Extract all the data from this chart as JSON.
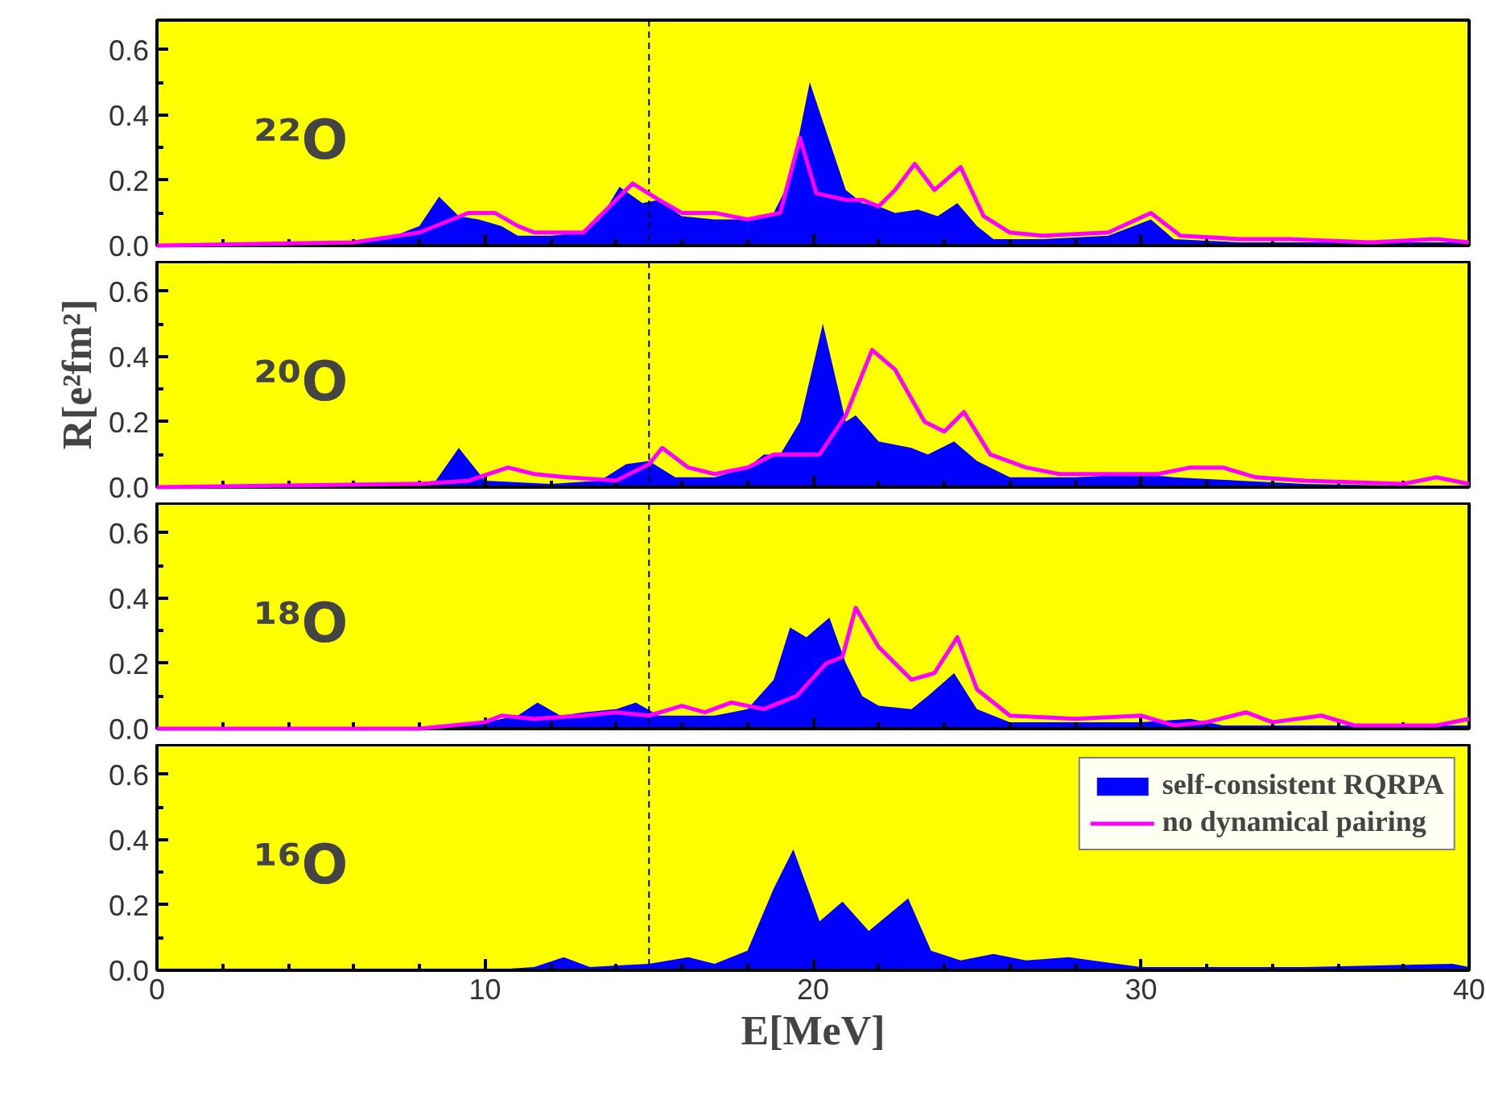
{
  "chart_data": [
    {
      "type": "area",
      "annotations": [
        "²²O"
      ],
      "xlim": [
        0,
        40
      ],
      "ylim": [
        0,
        0.69
      ],
      "xticks": [
        0,
        {
          "value": 2,
          "label": null
        },
        {
          "value": 4,
          "label": null
        },
        {
          "value": 6,
          "label": null
        },
        {
          "value": 8,
          "label": null
        },
        10,
        {
          "value": 12,
          "label": null
        },
        {
          "value": 14,
          "label": null
        },
        {
          "value": 16,
          "label": null
        },
        {
          "value": 18,
          "label": null
        },
        20,
        {
          "value": 22,
          "label": null
        },
        {
          "value": 24,
          "label": null
        },
        {
          "value": 26,
          "label": null
        },
        {
          "value": 28,
          "label": null
        },
        30,
        {
          "value": 32,
          "label": null
        },
        {
          "value": 34,
          "label": null
        },
        {
          "value": 36,
          "label": null
        },
        {
          "value": 38,
          "label": null
        },
        40
      ],
      "yticks": [
        {
          "value": 0,
          "label": "0.0"
        },
        {
          "value": 0.1,
          "label": null
        },
        0.2,
        {
          "value": 0.3,
          "label": null
        },
        0.4,
        {
          "value": 0.5,
          "label": null
        },
        0.6
      ],
      "tick_labels": "y",
      "ref_lines": [
        {
          "axis": "x",
          "value": 15,
          "line_style": "dashed",
          "color": "#000000"
        }
      ],
      "series": [
        {
          "color": "#0000ff",
          "x": [
            0,
            5,
            6,
            7,
            8,
            8.6,
            9.2,
            9.8,
            10.5,
            11,
            12,
            13,
            13.5,
            14.1,
            14.8,
            15.3,
            16,
            17,
            18,
            18.8,
            19.3,
            19.9,
            20.4,
            21,
            21.5,
            22,
            22.5,
            23.2,
            23.8,
            24.4,
            25,
            25.5,
            27,
            29,
            30.3,
            31,
            33,
            35,
            40
          ],
          "values": [
            0,
            0,
            0.005,
            0.02,
            0.06,
            0.15,
            0.09,
            0.08,
            0.06,
            0.03,
            0.03,
            0.04,
            0.08,
            0.18,
            0.13,
            0.14,
            0.09,
            0.08,
            0.08,
            0.1,
            0.2,
            0.5,
            0.35,
            0.17,
            0.13,
            0.12,
            0.1,
            0.11,
            0.09,
            0.13,
            0.06,
            0.02,
            0.02,
            0.03,
            0.08,
            0.02,
            0.01,
            0.01,
            0.01
          ]
        },
        {
          "type": "line",
          "color": "#ff00ff",
          "x": [
            0,
            6,
            8,
            9,
            9.5,
            10.3,
            11,
            11.5,
            13,
            14.2,
            14.5,
            15.3,
            16,
            17,
            18,
            19,
            19.6,
            20.1,
            21,
            21.5,
            22,
            22.5,
            23.1,
            23.7,
            24.5,
            25.2,
            26,
            27,
            29,
            30.3,
            31.2,
            33,
            34.5,
            37,
            39,
            40
          ],
          "values": [
            0,
            0.01,
            0.04,
            0.08,
            0.1,
            0.1,
            0.06,
            0.04,
            0.04,
            0.16,
            0.19,
            0.14,
            0.1,
            0.1,
            0.08,
            0.1,
            0.33,
            0.16,
            0.14,
            0.14,
            0.12,
            0.17,
            0.25,
            0.17,
            0.24,
            0.09,
            0.04,
            0.03,
            0.04,
            0.1,
            0.03,
            0.02,
            0.02,
            0.01,
            0.02,
            0.01
          ]
        }
      ]
    },
    {
      "type": "area",
      "annotations": [
        "²⁰O"
      ],
      "ylabel": "R[e²fm²]",
      "xlim": [
        0,
        40
      ],
      "ylim": [
        0,
        0.69
      ],
      "xticks": [
        0,
        {
          "value": 2,
          "label": null
        },
        {
          "value": 4,
          "label": null
        },
        {
          "value": 6,
          "label": null
        },
        {
          "value": 8,
          "label": null
        },
        10,
        {
          "value": 12,
          "label": null
        },
        {
          "value": 14,
          "label": null
        },
        {
          "value": 16,
          "label": null
        },
        {
          "value": 18,
          "label": null
        },
        20,
        {
          "value": 22,
          "label": null
        },
        {
          "value": 24,
          "label": null
        },
        {
          "value": 26,
          "label": null
        },
        {
          "value": 28,
          "label": null
        },
        30,
        {
          "value": 32,
          "label": null
        },
        {
          "value": 34,
          "label": null
        },
        {
          "value": 36,
          "label": null
        },
        {
          "value": 38,
          "label": null
        },
        40
      ],
      "yticks": [
        {
          "value": 0,
          "label": "0.0"
        },
        {
          "value": 0.1,
          "label": null
        },
        0.2,
        {
          "value": 0.3,
          "label": null
        },
        0.4,
        {
          "value": 0.5,
          "label": null
        },
        0.6
      ],
      "tick_labels": "y",
      "ref_lines": [
        {
          "axis": "x",
          "value": 15,
          "line_style": "dashed",
          "color": "#000000"
        }
      ],
      "series": [
        {
          "color": "#0000ff",
          "x": [
            0,
            7,
            8.5,
            9.2,
            10,
            12,
            13.5,
            14.3,
            15,
            15.8,
            17,
            18,
            18.5,
            19,
            19.6,
            20.3,
            21,
            21.3,
            22,
            23,
            23.5,
            24.3,
            25,
            26,
            28,
            30,
            31,
            33,
            35,
            40
          ],
          "values": [
            0,
            0,
            0.02,
            0.12,
            0.02,
            0.01,
            0.02,
            0.07,
            0.08,
            0.03,
            0.03,
            0.06,
            0.1,
            0.1,
            0.2,
            0.5,
            0.2,
            0.22,
            0.14,
            0.12,
            0.1,
            0.14,
            0.08,
            0.03,
            0.03,
            0.04,
            0.03,
            0.02,
            0.01,
            0
          ]
        },
        {
          "type": "line",
          "color": "#ff00ff",
          "x": [
            0,
            8,
            9.5,
            10.7,
            11.5,
            12.5,
            14,
            15,
            15.4,
            16.2,
            17,
            18,
            18.8,
            19.5,
            20.2,
            21,
            21.8,
            22.5,
            23.4,
            24,
            24.6,
            25.4,
            26.5,
            27.5,
            29,
            30.5,
            31.5,
            32.5,
            33.5,
            35,
            38,
            39,
            40
          ],
          "values": [
            0,
            0.01,
            0.02,
            0.06,
            0.04,
            0.03,
            0.02,
            0.07,
            0.12,
            0.06,
            0.04,
            0.06,
            0.1,
            0.1,
            0.1,
            0.22,
            0.42,
            0.36,
            0.2,
            0.17,
            0.23,
            0.1,
            0.06,
            0.04,
            0.04,
            0.04,
            0.06,
            0.06,
            0.03,
            0.02,
            0.01,
            0.03,
            0.01
          ]
        }
      ]
    },
    {
      "type": "area",
      "annotations": [
        "¹⁸O"
      ],
      "xlim": [
        0,
        40
      ],
      "ylim": [
        0,
        0.69
      ],
      "xticks": [
        0,
        {
          "value": 2,
          "label": null
        },
        {
          "value": 4,
          "label": null
        },
        {
          "value": 6,
          "label": null
        },
        {
          "value": 8,
          "label": null
        },
        10,
        {
          "value": 12,
          "label": null
        },
        {
          "value": 14,
          "label": null
        },
        {
          "value": 16,
          "label": null
        },
        {
          "value": 18,
          "label": null
        },
        20,
        {
          "value": 22,
          "label": null
        },
        {
          "value": 24,
          "label": null
        },
        {
          "value": 26,
          "label": null
        },
        {
          "value": 28,
          "label": null
        },
        30,
        {
          "value": 32,
          "label": null
        },
        {
          "value": 34,
          "label": null
        },
        {
          "value": 36,
          "label": null
        },
        {
          "value": 38,
          "label": null
        },
        40
      ],
      "yticks": [
        {
          "value": 0,
          "label": "0.0"
        },
        {
          "value": 0.1,
          "label": null
        },
        0.2,
        {
          "value": 0.3,
          "label": null
        },
        0.4,
        {
          "value": 0.5,
          "label": null
        },
        0.6
      ],
      "tick_labels": "y",
      "ref_lines": [
        {
          "axis": "x",
          "value": 15,
          "line_style": "dashed",
          "color": "#000000"
        }
      ],
      "series": [
        {
          "color": "#0000ff",
          "x": [
            0,
            8,
            10,
            11,
            11.6,
            12.3,
            13,
            14,
            14.6,
            15.3,
            17,
            18,
            18.8,
            19.3,
            19.8,
            20.5,
            21,
            21.5,
            22,
            23,
            23.5,
            24.3,
            25,
            26,
            28,
            30,
            31.5,
            32.5,
            35,
            40
          ],
          "values": [
            0,
            0,
            0.02,
            0.04,
            0.08,
            0.04,
            0.05,
            0.06,
            0.08,
            0.04,
            0.04,
            0.06,
            0.15,
            0.31,
            0.28,
            0.34,
            0.2,
            0.1,
            0.07,
            0.06,
            0.1,
            0.17,
            0.06,
            0.02,
            0.02,
            0.02,
            0.03,
            0.01,
            0.01,
            0.01
          ]
        },
        {
          "type": "line",
          "color": "#ff00ff",
          "x": [
            0,
            8,
            10,
            10.5,
            11.5,
            13,
            14,
            15,
            16,
            16.7,
            17.5,
            18.5,
            19.5,
            20.4,
            20.9,
            21.3,
            22,
            23,
            23.7,
            24.4,
            25,
            26,
            28,
            30,
            31,
            32,
            33.2,
            34,
            35.5,
            36.5,
            39,
            40
          ],
          "values": [
            0,
            0,
            0.02,
            0.04,
            0.03,
            0.04,
            0.05,
            0.04,
            0.07,
            0.05,
            0.08,
            0.06,
            0.1,
            0.2,
            0.22,
            0.37,
            0.25,
            0.15,
            0.17,
            0.28,
            0.12,
            0.04,
            0.03,
            0.04,
            0.01,
            0.02,
            0.05,
            0.02,
            0.04,
            0.01,
            0.01,
            0.03
          ]
        }
      ]
    },
    {
      "type": "area",
      "annotations": [
        "¹⁶O"
      ],
      "xlabel": "E[MeV]",
      "xlim": [
        0,
        40
      ],
      "ylim": [
        0,
        0.69
      ],
      "legend": "top right",
      "xticks": [
        0,
        {
          "value": 2,
          "label": null
        },
        {
          "value": 4,
          "label": null
        },
        {
          "value": 6,
          "label": null
        },
        {
          "value": 8,
          "label": null
        },
        10,
        {
          "value": 12,
          "label": null
        },
        {
          "value": 14,
          "label": null
        },
        {
          "value": 16,
          "label": null
        },
        {
          "value": 18,
          "label": null
        },
        20,
        {
          "value": 22,
          "label": null
        },
        {
          "value": 24,
          "label": null
        },
        {
          "value": 26,
          "label": null
        },
        {
          "value": 28,
          "label": null
        },
        30,
        {
          "value": 32,
          "label": null
        },
        {
          "value": 34,
          "label": null
        },
        {
          "value": 36,
          "label": null
        },
        {
          "value": 38,
          "label": null
        },
        40
      ],
      "yticks": [
        {
          "value": 0,
          "label": "0.0"
        },
        {
          "value": 0.1,
          "label": null
        },
        0.2,
        {
          "value": 0.3,
          "label": null
        },
        0.4,
        {
          "value": 0.5,
          "label": null
        },
        0.6
      ],
      "ref_lines": [
        {
          "axis": "x",
          "value": 15,
          "line_style": "dashed",
          "color": "#000000"
        }
      ],
      "series": [
        {
          "name": "self-consistent RQRPA",
          "color": "#0000ff",
          "x": [
            0,
            10,
            11.5,
            12.4,
            13.2,
            15,
            16.2,
            17,
            18,
            18.8,
            19.4,
            20.2,
            20.9,
            21.7,
            22.9,
            23.6,
            24.5,
            25.5,
            26.5,
            27.8,
            28.5,
            30,
            32,
            35,
            39.5,
            40
          ],
          "values": [
            0,
            0,
            0.01,
            0.04,
            0.01,
            0.02,
            0.04,
            0.02,
            0.06,
            0.25,
            0.37,
            0.15,
            0.21,
            0.12,
            0.22,
            0.06,
            0.03,
            0.05,
            0.03,
            0.04,
            0.03,
            0.01,
            0.01,
            0.01,
            0.02,
            0.01
          ]
        },
        {
          "type": "line",
          "name": "no dynamical pairing",
          "color": "#ff00ff",
          "values": [
            null
          ]
        }
      ]
    }
  ]
}
